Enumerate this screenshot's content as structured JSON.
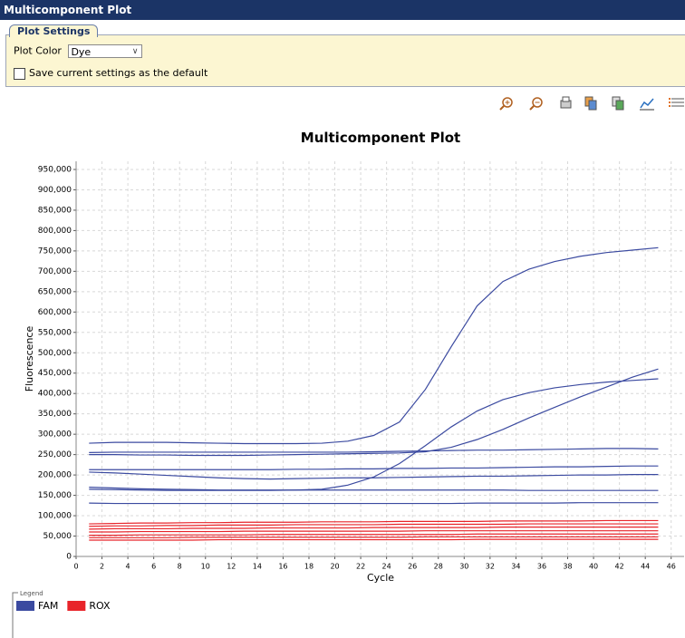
{
  "window": {
    "title": "Multicomponent Plot"
  },
  "plot_settings": {
    "tab": "Plot Settings",
    "plot_color_label": "Plot Color",
    "plot_color_value": "Dye",
    "save_default_label": "Save current settings as the default"
  },
  "chart_data": {
    "type": "line",
    "title": "Multicomponent Plot",
    "x_label": "Cycle",
    "y_label": "Fluorescence",
    "legend_title": "Legend",
    "grid": true,
    "x": [
      1,
      3,
      5,
      7,
      9,
      11,
      13,
      15,
      17,
      19,
      21,
      23,
      25,
      27,
      29,
      31,
      33,
      35,
      37,
      39,
      41,
      43,
      45
    ],
    "xlim": [
      0,
      47
    ],
    "xticks": [
      0,
      2,
      4,
      6,
      8,
      10,
      12,
      14,
      16,
      18,
      20,
      22,
      24,
      26,
      28,
      30,
      32,
      34,
      36,
      38,
      40,
      42,
      44,
      46
    ],
    "ylim": [
      0,
      970000
    ],
    "yticks": [
      0,
      {
        "value": 50000,
        "label": "50,000"
      },
      {
        "value": 100000,
        "label": "100,000"
      },
      {
        "value": 150000,
        "label": "150,000"
      },
      {
        "value": 200000,
        "label": "200,000"
      },
      {
        "value": 250000,
        "label": "250,000"
      },
      {
        "value": 300000,
        "label": "300,000"
      },
      {
        "value": 350000,
        "label": "350,000"
      },
      {
        "value": 400000,
        "label": "400,000"
      },
      {
        "value": 450000,
        "label": "450,000"
      },
      {
        "value": 500000,
        "label": "500,000"
      },
      {
        "value": 550000,
        "label": "550,000"
      },
      {
        "value": 600000,
        "label": "600,000"
      },
      {
        "value": 650000,
        "label": "650,000"
      },
      {
        "value": 700000,
        "label": "700,000"
      },
      {
        "value": 750000,
        "label": "750,000"
      },
      {
        "value": 800000,
        "label": "800,000"
      },
      {
        "value": 850000,
        "label": "850,000"
      },
      {
        "value": 900000,
        "label": "900,000"
      },
      {
        "value": 950000,
        "label": "950,000"
      }
    ],
    "series": [
      {
        "name": "FAM",
        "color": "#3b4aa0",
        "lines": [
          [
            278000,
            280000,
            280000,
            280000,
            279000,
            278000,
            277000,
            277000,
            277000,
            278000,
            283000,
            297000,
            330000,
            410000,
            515000,
            615000,
            675000,
            705000,
            724000,
            737000,
            746000,
            752000,
            758000
          ],
          [
            165000,
            164000,
            163000,
            162000,
            162000,
            162000,
            162000,
            162000,
            163000,
            165000,
            175000,
            195000,
            228000,
            272000,
            318000,
            357000,
            385000,
            402000,
            414000,
            422000,
            428000,
            432000,
            436000
          ],
          [
            250000,
            250000,
            249000,
            249000,
            248000,
            248000,
            248000,
            249000,
            250000,
            251000,
            252000,
            253000,
            254000,
            257000,
            268000,
            287000,
            312000,
            340000,
            366000,
            392000,
            416000,
            440000,
            460000
          ],
          [
            255000,
            256000,
            256000,
            256000,
            256000,
            256000,
            256000,
            256000,
            256000,
            256000,
            256000,
            257000,
            258000,
            259000,
            260000,
            261000,
            261000,
            262000,
            263000,
            264000,
            265000,
            265000,
            264000
          ],
          [
            213000,
            213000,
            213000,
            213000,
            213000,
            213000,
            213000,
            213000,
            214000,
            214000,
            215000,
            215000,
            216000,
            216000,
            217000,
            217000,
            218000,
            219000,
            220000,
            220000,
            221000,
            222000,
            222000
          ],
          [
            207000,
            205000,
            202000,
            199000,
            196000,
            193000,
            191000,
            190000,
            191000,
            192000,
            193000,
            193000,
            194000,
            195000,
            196000,
            197000,
            197000,
            198000,
            199000,
            200000,
            200000,
            201000,
            201000
          ],
          [
            170000,
            168000,
            166000,
            165000,
            164000,
            163000,
            163000,
            163000,
            163000,
            163000,
            163000,
            163000,
            163000,
            163000,
            163000,
            163000,
            163000,
            162000,
            162000,
            162000,
            162000,
            162000,
            162000
          ],
          [
            131000,
            130000,
            130000,
            130000,
            130000,
            130000,
            130000,
            130000,
            130000,
            130000,
            130000,
            130000,
            130000,
            130000,
            130000,
            131000,
            131000,
            131000,
            131000,
            132000,
            132000,
            132000,
            132000
          ]
        ]
      },
      {
        "name": "ROX",
        "color": "#e8242a",
        "lines": [
          [
            80000,
            81000,
            82000,
            82000,
            83000,
            83000,
            84000,
            84000,
            84000,
            85000,
            85000,
            85000,
            86000,
            86000,
            86000,
            86000,
            87000,
            87000,
            87000,
            87000,
            88000,
            88000,
            88000
          ],
          [
            74000,
            75000,
            75000,
            76000,
            76000,
            77000,
            77000,
            77000,
            78000,
            78000,
            78000,
            78000,
            79000,
            79000,
            79000,
            79000,
            79000,
            80000,
            80000,
            80000,
            80000,
            80000,
            80000
          ],
          [
            67000,
            68000,
            68000,
            68000,
            69000,
            69000,
            69000,
            70000,
            70000,
            70000,
            70000,
            71000,
            71000,
            71000,
            71000,
            71000,
            72000,
            72000,
            72000,
            72000,
            72000,
            72000,
            72000
          ],
          [
            60000,
            60000,
            61000,
            61000,
            61000,
            61000,
            62000,
            62000,
            62000,
            62000,
            62000,
            62000,
            62000,
            63000,
            63000,
            63000,
            63000,
            63000,
            63000,
            63000,
            63000,
            63000,
            63000
          ],
          [
            52000,
            52000,
            53000,
            53000,
            53000,
            53000,
            53000,
            54000,
            54000,
            54000,
            54000,
            54000,
            54000,
            54000,
            54000,
            55000,
            55000,
            55000,
            55000,
            55000,
            55000,
            55000,
            55000
          ],
          [
            46000,
            46000,
            46000,
            46000,
            47000,
            47000,
            47000,
            47000,
            47000,
            47000,
            47000,
            47000,
            47000,
            48000,
            48000,
            48000,
            48000,
            48000,
            48000,
            48000,
            48000,
            48000,
            48000
          ],
          [
            40000,
            40000,
            40000,
            40000,
            40000,
            41000,
            41000,
            41000,
            41000,
            41000,
            41000,
            41000,
            41000,
            41000,
            41000,
            42000,
            42000,
            42000,
            42000,
            42000,
            42000,
            42000,
            42000
          ]
        ]
      }
    ]
  }
}
